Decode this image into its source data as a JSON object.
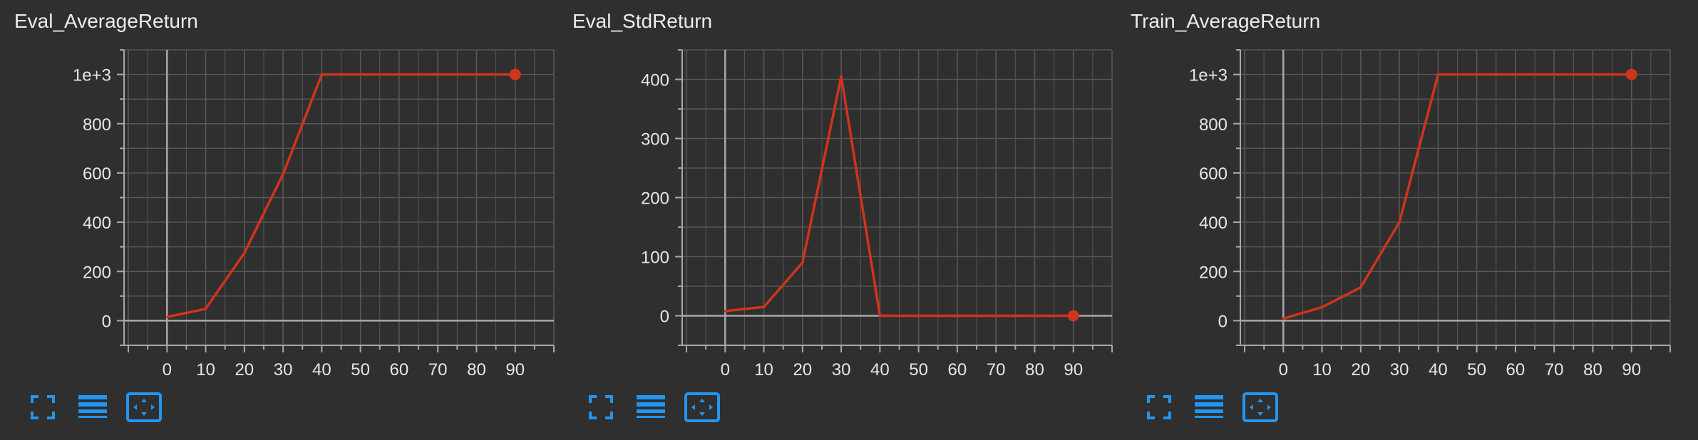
{
  "colors": {
    "background": "#2f2f2f",
    "grid": "#575757",
    "axis": "#a8a8a8",
    "series": "#d0341c",
    "tool_icon": "#2196f3"
  },
  "toolbar_icons": [
    "fullscreen-icon",
    "legend-lines-icon",
    "fit-domain-icon"
  ],
  "chart_data": [
    {
      "type": "line",
      "title": "Eval_AverageReturn",
      "x": [
        0,
        10,
        20,
        30,
        40,
        90
      ],
      "y": [
        15,
        48,
        275,
        595,
        1000,
        1000
      ],
      "xlim": [
        -10,
        100
      ],
      "ylim": [
        -100,
        1100
      ],
      "xticks": [
        0,
        10,
        20,
        30,
        40,
        50,
        60,
        70,
        80,
        90
      ],
      "yticks": [
        0,
        200,
        400,
        600,
        800,
        1000
      ],
      "ytick_labels": [
        "0",
        "200",
        "400",
        "600",
        "800",
        "1e+3"
      ],
      "grid": true
    },
    {
      "type": "line",
      "title": "Eval_StdReturn",
      "x": [
        0,
        10,
        20,
        30,
        40,
        90
      ],
      "y": [
        8,
        15,
        90,
        405,
        0,
        0
      ],
      "xlim": [
        -10,
        100
      ],
      "ylim": [
        -50,
        450
      ],
      "xticks": [
        0,
        10,
        20,
        30,
        40,
        50,
        60,
        70,
        80,
        90
      ],
      "yticks": [
        0,
        100,
        200,
        300,
        400
      ],
      "ytick_labels": [
        "0",
        "100",
        "200",
        "300",
        "400"
      ],
      "grid": true
    },
    {
      "type": "line",
      "title": "Train_AverageReturn",
      "x": [
        0,
        10,
        20,
        30,
        40,
        90
      ],
      "y": [
        8,
        55,
        135,
        400,
        1000,
        1000
      ],
      "xlim": [
        -10,
        100
      ],
      "ylim": [
        -100,
        1100
      ],
      "xticks": [
        0,
        10,
        20,
        30,
        40,
        50,
        60,
        70,
        80,
        90
      ],
      "yticks": [
        0,
        200,
        400,
        600,
        800,
        1000
      ],
      "ytick_labels": [
        "0",
        "200",
        "400",
        "600",
        "800",
        "1e+3"
      ],
      "grid": true
    }
  ]
}
